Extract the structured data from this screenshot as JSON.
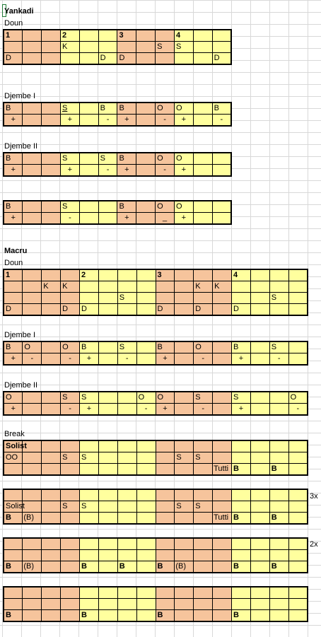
{
  "labels": {
    "title": "Yankadi",
    "doun1": "Doun",
    "djembe1": "Djembe I",
    "djembe2": "Djembe II",
    "macru": "Macru",
    "doun2": "Doun",
    "djembe1b": "Djembe I",
    "djembe2b": "Djembe II",
    "brk": "Break",
    "rep3": "3x",
    "rep2": "2x"
  },
  "grids": [
    {
      "id": "yankadi-doun",
      "pattern": "oooyyyoooyyy",
      "rows": [
        [
          "1",
          "",
          "",
          "2",
          "",
          "",
          "3",
          "",
          "",
          "4",
          "",
          ""
        ],
        [
          "",
          "",
          "",
          "K",
          "",
          "",
          "",
          "",
          "S",
          "S",
          "",
          ""
        ],
        [
          "D",
          "",
          "",
          "",
          "",
          "D",
          "D",
          "",
          "",
          "",
          "",
          "D"
        ]
      ]
    },
    {
      "id": "yankadi-djembe-1",
      "pattern": "oooyyyoooyyy",
      "rows": [
        [
          "B",
          "",
          "",
          "S",
          "",
          "B",
          "B",
          "",
          "O",
          "O",
          "",
          "B"
        ],
        [
          "+",
          "",
          "",
          "+",
          "",
          "-",
          "+",
          "",
          "-",
          "+",
          "",
          "-"
        ]
      ]
    },
    {
      "id": "yankadi-djembe-2",
      "pattern": "oooyyyoooyyy",
      "rows": [
        [
          "B",
          "",
          "",
          "S",
          "",
          "S",
          "B",
          "",
          "O",
          "O",
          "",
          ""
        ],
        [
          "+",
          "",
          "",
          "+",
          "",
          "-",
          "+",
          "",
          "-",
          "+",
          "",
          ""
        ]
      ]
    },
    {
      "id": "yankadi-djembe-2b",
      "pattern": "oooyyyoooyyy",
      "rows": [
        [
          "B",
          "",
          "",
          "S",
          "",
          "",
          "B",
          "",
          "O",
          "O",
          "",
          ""
        ],
        [
          "+",
          "",
          "",
          "-",
          "",
          "",
          "+",
          "",
          "_",
          "+",
          "",
          ""
        ]
      ]
    },
    {
      "id": "macru-doun",
      "pattern": "ooooyyyyooooyyyy",
      "rows": [
        [
          "1",
          "",
          "",
          "",
          "2",
          "",
          "",
          "",
          "3",
          "",
          "",
          "",
          "4",
          "",
          "",
          ""
        ],
        [
          "",
          "",
          "K",
          "K",
          "",
          "",
          "",
          "",
          "",
          "",
          "K",
          "K",
          "",
          "",
          "",
          ""
        ],
        [
          "",
          "",
          "",
          "",
          "",
          "",
          "S",
          "",
          "",
          "",
          "",
          "",
          "",
          "",
          "S",
          ""
        ],
        [
          "D",
          "",
          "",
          "D",
          "D",
          "",
          "",
          "",
          "D",
          "",
          "D",
          "",
          "D",
          "",
          "",
          ""
        ]
      ]
    },
    {
      "id": "macru-djembe-1",
      "pattern": "ooooyyyyooooyyyy",
      "rows": [
        [
          "B",
          "O",
          "",
          "O",
          "B",
          "",
          "S",
          "",
          "B",
          "",
          "O",
          "",
          "B",
          "",
          "S",
          ""
        ],
        [
          "+",
          "-",
          "",
          "-",
          "+",
          "",
          "-",
          "",
          "+",
          "",
          "-",
          "",
          "+",
          "",
          "-",
          ""
        ]
      ]
    },
    {
      "id": "macru-djembe-2",
      "pattern": "ooooyyyyooooyyyy",
      "rows": [
        [
          "O",
          "",
          "",
          "S",
          "S",
          "",
          "",
          "O",
          "O",
          "",
          "S",
          "",
          "S",
          "",
          "",
          "O"
        ],
        [
          "+",
          "",
          "",
          "-",
          "+",
          "",
          "",
          "-",
          "+",
          "",
          "-",
          "",
          "+",
          "",
          "",
          "-"
        ]
      ]
    },
    {
      "id": "break-1",
      "pattern": "ooooyyyyooooyyyy",
      "rows": [
        [
          "Solist",
          "",
          "",
          "",
          "",
          "",
          "",
          "",
          "",
          "",
          "",
          "",
          "",
          "",
          "",
          ""
        ],
        [
          "OO",
          "",
          "",
          "S",
          "S",
          "",
          "",
          "",
          "",
          "S",
          "S",
          "",
          "",
          "",
          "",
          ""
        ],
        [
          "",
          "",
          "",
          "",
          "",
          "",
          "",
          "",
          "",
          "",
          "",
          "Tutti",
          "B",
          "",
          "B",
          ""
        ]
      ]
    },
    {
      "id": "break-2",
      "pattern": "ooooyyyyooooyyyy",
      "rows": [
        [
          "",
          "",
          "",
          "",
          "",
          "",
          "",
          "",
          "",
          "",
          "",
          "",
          "",
          "",
          "",
          ""
        ],
        [
          "Solist",
          "",
          "",
          "S",
          "S",
          "",
          "",
          "",
          "",
          "S",
          "S",
          "",
          "",
          "",
          "",
          ""
        ],
        [
          "B",
          "(B)",
          "",
          "",
          "",
          "",
          "",
          "",
          "",
          "",
          "",
          "Tutti",
          "B",
          "",
          "B",
          ""
        ]
      ]
    },
    {
      "id": "break-3",
      "pattern": "ooooyyyyooooyyyy",
      "rows": [
        [
          "",
          "",
          "",
          "",
          "",
          "",
          "",
          "",
          "",
          "",
          "",
          "",
          "",
          "",
          "",
          ""
        ],
        [
          "",
          "",
          "",
          "",
          "",
          "",
          "",
          "",
          "",
          "",
          "",
          "",
          "",
          "",
          "",
          ""
        ],
        [
          "B",
          "(B)",
          "",
          "",
          "B",
          "",
          "B",
          "",
          "B",
          "(B)",
          "",
          "",
          "B",
          "",
          "B",
          ""
        ]
      ]
    },
    {
      "id": "break-4",
      "pattern": "ooooyyyyooooyyyy",
      "rows": [
        [
          "",
          "",
          "",
          "",
          "",
          "",
          "",
          "",
          "",
          "",
          "",
          "",
          "",
          "",
          "",
          ""
        ],
        [
          "",
          "",
          "",
          "",
          "",
          "",
          "",
          "",
          "",
          "",
          "",
          "",
          "",
          "",
          "",
          ""
        ],
        [
          "B",
          "",
          "",
          "",
          "B",
          "",
          "",
          "",
          "B",
          "",
          "",
          "",
          "B",
          "",
          "",
          ""
        ]
      ]
    }
  ]
}
